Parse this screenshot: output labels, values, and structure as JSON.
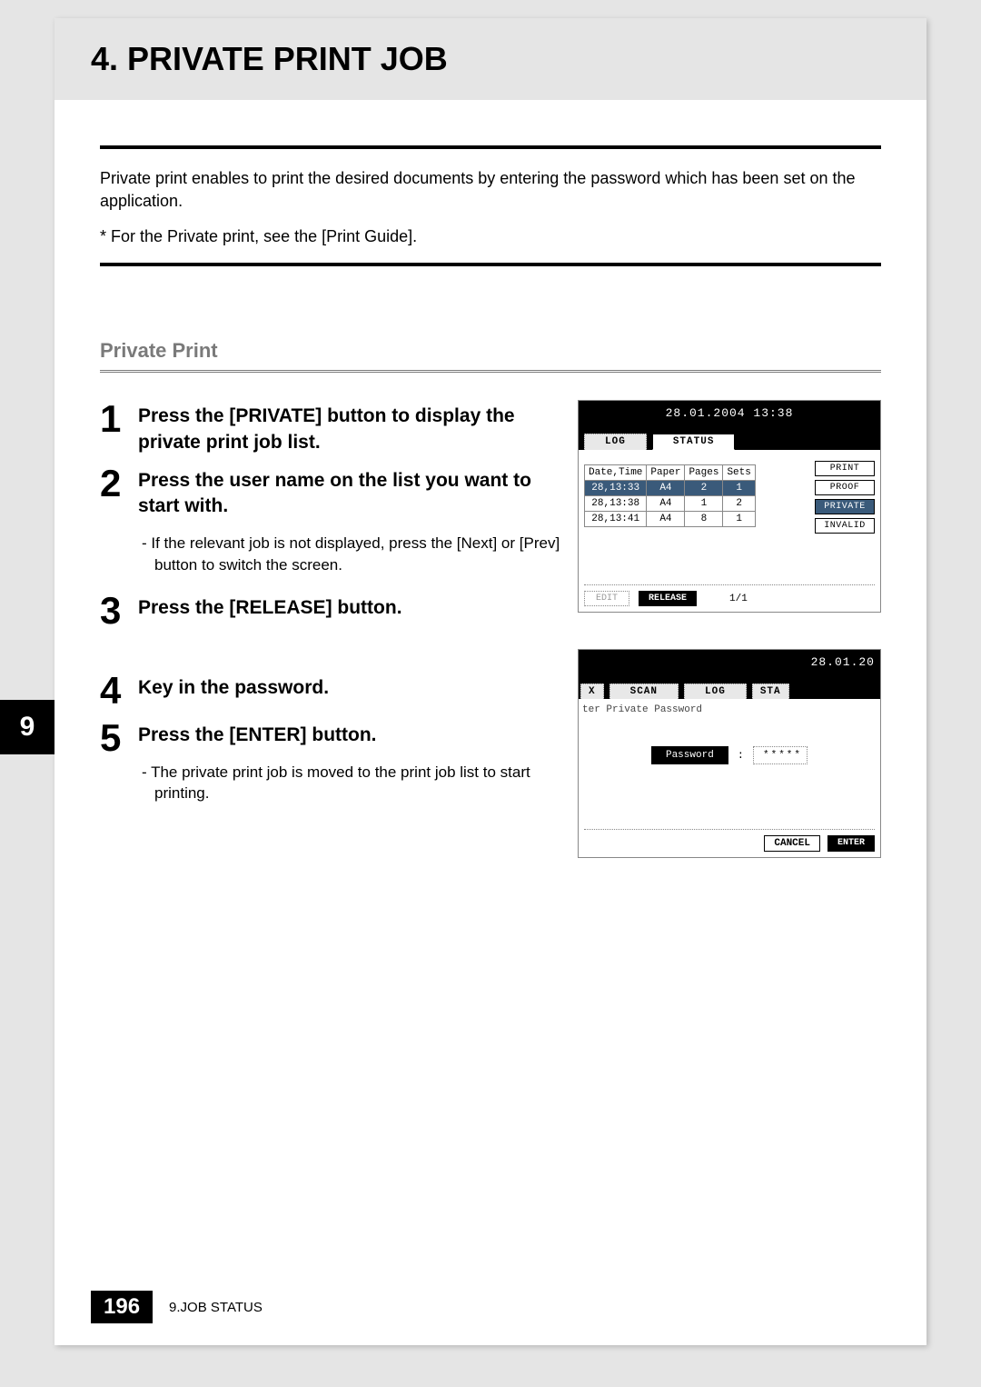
{
  "header": {
    "title": "4. PRIVATE PRINT JOB"
  },
  "intro": "Private print enables to print the desired documents by entering the password which has been set on the application.",
  "reference": "*  For the Private print, see the [Print Guide].",
  "section_heading": "Private Print",
  "steps": [
    {
      "num": "1",
      "title": "Press the [PRIVATE] button to display the private print job list."
    },
    {
      "num": "2",
      "title": "Press the user name on the list you want to start with.",
      "sub": "If the relevant job is not displayed, press the [Next] or [Prev] button to switch the screen."
    },
    {
      "num": "3",
      "title": "Press the [RELEASE] button."
    },
    {
      "num": "4",
      "title": "Key in the password."
    },
    {
      "num": "5",
      "title": "Press the [ENTER] button.",
      "sub": "The private print job is moved to the print job list to start printing."
    }
  ],
  "chapter_tab": "9",
  "screenshot1": {
    "datetime": "28.01.2004 13:38",
    "tabs": {
      "log": "LOG",
      "status": "STATUS"
    },
    "table": {
      "headers": [
        "Date,Time",
        "Paper",
        "Pages",
        "Sets"
      ],
      "rows": [
        [
          "28,13:33",
          "A4",
          "2",
          "1"
        ],
        [
          "28,13:38",
          "A4",
          "1",
          "2"
        ],
        [
          "28,13:41",
          "A4",
          "8",
          "1"
        ]
      ]
    },
    "side_buttons": {
      "print": "PRINT",
      "proof": "PROOF",
      "private": "PRIVATE",
      "invalid": "INVALID"
    },
    "bottom": {
      "edit": "EDIT",
      "release": "RELEASE",
      "page": "1/1"
    }
  },
  "screenshot2": {
    "datetime": "28.01.20",
    "tabs": {
      "x": "X",
      "scan": "SCAN",
      "log": "LOG",
      "sta": "STA"
    },
    "sub": "ter Private Password",
    "pass_label": "Password",
    "pass_value": "*****",
    "cancel": "CANCEL",
    "enter": "ENTER"
  },
  "footer": {
    "page_num": "196",
    "section": "9.JOB STATUS"
  }
}
